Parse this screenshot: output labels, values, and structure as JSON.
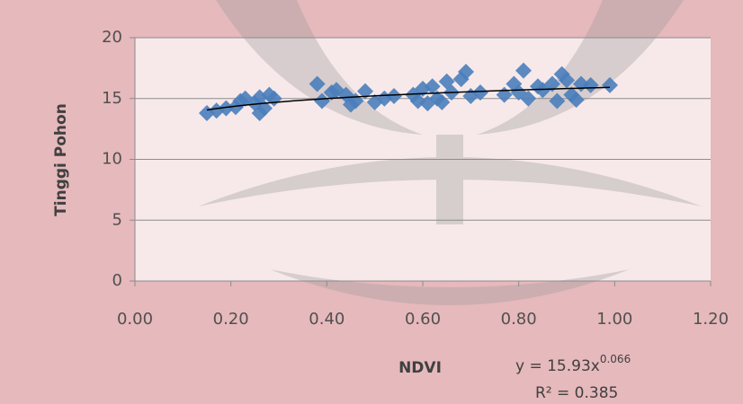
{
  "chart_data": {
    "type": "scatter",
    "x_label": "NDVI",
    "y_label": "Tinggi Pohon",
    "xlim": [
      0,
      1.2
    ],
    "ylim": [
      0,
      20
    ],
    "xticks": [
      {
        "value": 0,
        "label": "0.00"
      },
      {
        "value": 0.2,
        "label": "0.20"
      },
      {
        "value": 0.4,
        "label": "0.40"
      },
      {
        "value": 0.6,
        "label": "0.60"
      },
      {
        "value": 0.8,
        "label": "0.80"
      },
      {
        "value": 1,
        "label": "1.00"
      },
      {
        "value": 1.2,
        "label": "1.20"
      }
    ],
    "yticks": [
      0,
      5,
      10,
      15,
      20
    ],
    "grid": true,
    "color": "#4a7ebb",
    "x": [
      0.15,
      0.17,
      0.19,
      0.21,
      0.22,
      0.23,
      0.25,
      0.26,
      0.26,
      0.27,
      0.28,
      0.29,
      0.38,
      0.39,
      0.41,
      0.42,
      0.44,
      0.45,
      0.46,
      0.48,
      0.5,
      0.52,
      0.54,
      0.58,
      0.59,
      0.6,
      0.61,
      0.62,
      0.63,
      0.64,
      0.65,
      0.66,
      0.68,
      0.69,
      0.7,
      0.72,
      0.77,
      0.79,
      0.8,
      0.81,
      0.82,
      0.84,
      0.85,
      0.87,
      0.88,
      0.89,
      0.9,
      0.91,
      0.92,
      0.93,
      0.95,
      0.99
    ],
    "values": [
      13.8,
      14.0,
      14.2,
      14.3,
      14.8,
      15.0,
      14.6,
      15.1,
      13.8,
      14.2,
      15.3,
      15.0,
      16.2,
      14.8,
      15.5,
      15.7,
      15.3,
      14.5,
      14.8,
      15.6,
      14.7,
      15.0,
      15.2,
      15.3,
      14.8,
      15.8,
      14.6,
      16.0,
      15.0,
      14.7,
      16.4,
      15.5,
      16.6,
      17.2,
      15.2,
      15.5,
      15.3,
      16.2,
      15.5,
      17.3,
      15.0,
      16.0,
      15.7,
      16.2,
      14.8,
      17.0,
      16.5,
      15.3,
      14.9,
      16.2,
      16.1,
      16.1
    ],
    "trendline": {
      "equation": "y = 15.93x",
      "exponent": "0.066",
      "r_squared": "R² = 0.385",
      "color": "#000000"
    }
  }
}
